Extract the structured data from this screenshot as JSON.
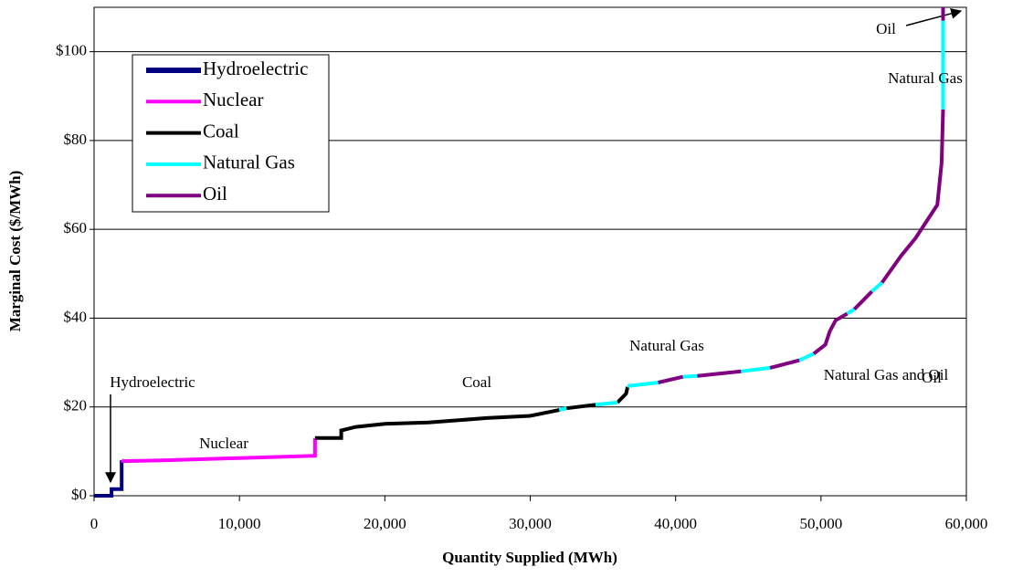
{
  "chart_data": {
    "type": "line",
    "xlabel": "Quantity Supplied (MWh)",
    "ylabel": "Marginal Cost ($/MWh)",
    "xlim": [
      0,
      60000
    ],
    "ylim": [
      0,
      110
    ],
    "xticks": [
      0,
      {
        "value": 10000,
        "label": "10,000"
      },
      {
        "value": 20000,
        "label": "20,000"
      },
      {
        "value": 30000,
        "label": "30,000"
      },
      {
        "value": 40000,
        "label": "40,000"
      },
      {
        "value": 50000,
        "label": "50,000"
      },
      {
        "value": 60000,
        "label": "60,000"
      }
    ],
    "yticks": [
      {
        "value": 0,
        "label": "$0"
      },
      {
        "value": 20,
        "label": "$20"
      },
      {
        "value": 40,
        "label": "$40"
      },
      {
        "value": 60,
        "label": "$60"
      },
      {
        "value": 80,
        "label": "$80"
      },
      {
        "value": 100,
        "label": "$100"
      }
    ],
    "grid": true,
    "legend": "upper left",
    "annotations": [
      "Hydroelectric",
      "Nuclear",
      "Coal",
      "Natural Gas",
      "Natural Gas and Oil",
      "Oil",
      "Natural Gas",
      "Oil"
    ],
    "series": [
      {
        "name": "Hydroelectric",
        "color": "#000080",
        "x": [
          0,
          1200,
          1200,
          1900,
          1900
        ],
        "values": [
          0,
          0,
          1.5,
          1.5,
          8
        ]
      },
      {
        "name": "Nuclear",
        "color": "#ff00ff",
        "x": [
          1900,
          2000,
          5000,
          10000,
          15200,
          15200
        ],
        "values": [
          8,
          7.8,
          8,
          8.5,
          9,
          13
        ]
      },
      {
        "name": "Coal",
        "color": "#000000",
        "x": [
          15200,
          17000,
          17000,
          18000,
          20000,
          23000,
          27000,
          30000,
          32000,
          null,
          32500,
          34500,
          null,
          36000,
          36600,
          36700
        ],
        "values": [
          13,
          13,
          14.7,
          15.5,
          16.2,
          16.5,
          17.5,
          18,
          19.3,
          null,
          19.7,
          20.5,
          null,
          21,
          23,
          24.5
        ]
      },
      {
        "name": "Natural Gas",
        "color": "#00ffff",
        "x": [
          32000,
          32500,
          null,
          34500,
          36000,
          null,
          36700,
          38800,
          null,
          40500,
          41500,
          null,
          44500,
          46500,
          null,
          48500,
          49500,
          null,
          51800,
          52300,
          null,
          53500,
          54200,
          null,
          58400,
          58400
        ],
        "values": [
          19.3,
          19.7,
          null,
          20.5,
          21,
          null,
          24.7,
          25.5,
          null,
          26.8,
          27,
          null,
          28,
          28.8,
          null,
          30.5,
          32,
          null,
          41,
          42,
          null,
          46,
          48,
          null,
          87,
          107
        ]
      },
      {
        "name": "Oil",
        "color": "#800080",
        "x": [
          38800,
          40500,
          null,
          41500,
          44500,
          null,
          46500,
          48500,
          null,
          49500,
          50300,
          50600,
          51000,
          51800,
          null,
          52300,
          53500,
          null,
          54200,
          55500,
          56500,
          57300,
          58000,
          58300,
          58400,
          null,
          58400,
          58400
        ],
        "values": [
          25.5,
          26.8,
          null,
          27,
          28,
          null,
          28.8,
          30.5,
          null,
          32,
          34,
          37,
          39.5,
          41,
          null,
          42,
          46,
          null,
          48,
          54,
          58,
          62,
          65.5,
          75,
          87,
          null,
          107,
          110
        ]
      }
    ]
  }
}
